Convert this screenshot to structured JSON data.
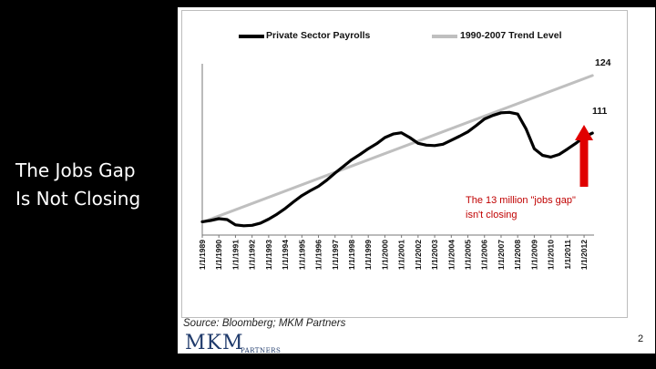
{
  "slide": {
    "title_lines": [
      "The Jobs Gap",
      "Is Not Closing"
    ],
    "page_number": "2"
  },
  "source_text": "Source: Bloomberg; MKM Partners",
  "logo": {
    "main": "MKM",
    "sub": "PARTNERS"
  },
  "annotation": {
    "lines": [
      "The 13 million \"jobs gap\"",
      "isn't closing"
    ]
  },
  "colors": {
    "payrolls": "#000000",
    "trend": "#bfbfbf",
    "annotation": "#c00000",
    "arrow": "#e00000"
  },
  "chart_data": {
    "type": "line",
    "title": "",
    "xlabel": "",
    "ylabel": "",
    "categories": [
      "1/1/1989",
      "1/1/1990",
      "1/1/1991",
      "1/1/1992",
      "1/1/1993",
      "1/1/1994",
      "1/1/1995",
      "1/1/1996",
      "1/1/1997",
      "1/1/1998",
      "1/1/1999",
      "1/1/2000",
      "1/1/2001",
      "1/1/2002",
      "1/1/2003",
      "1/1/2004",
      "1/1/2005",
      "1/1/2006",
      "1/1/2007",
      "1/1/2008",
      "1/1/2009",
      "1/1/2010",
      "1/1/2011",
      "1/1/2012"
    ],
    "ylim": [
      88,
      132
    ],
    "legend_position": "top",
    "series": [
      {
        "name": "Private Sector Payrolls",
        "color": "#000000",
        "x": [
          1989,
          1989.5,
          1990,
          1990.5,
          1991,
          1991.5,
          1992,
          1992.5,
          1993,
          1993.5,
          1994,
          1994.5,
          1995,
          1995.5,
          1996,
          1996.5,
          1997,
          1997.5,
          1998,
          1998.5,
          1999,
          1999.5,
          2000,
          2000.5,
          2001,
          2001.5,
          2002,
          2002.5,
          2003,
          2003.5,
          2004,
          2004.5,
          2005,
          2005.5,
          2006,
          2006.5,
          2007,
          2007.5,
          2008,
          2008.5,
          2009,
          2009.5,
          2010,
          2010.5,
          2011,
          2011.5,
          2012,
          2012.5
        ],
        "values": [
          91.0,
          91.3,
          91.7,
          91.5,
          90.3,
          90.1,
          90.2,
          90.7,
          91.6,
          92.7,
          94.0,
          95.5,
          96.9,
          98.0,
          99.0,
          100.4,
          102.0,
          103.5,
          105.0,
          106.2,
          107.5,
          108.6,
          110.0,
          110.8,
          111.1,
          110.0,
          108.7,
          108.3,
          108.2,
          108.5,
          109.4,
          110.3,
          111.3,
          112.7,
          114.2,
          115.0,
          115.6,
          115.7,
          115.3,
          112.0,
          107.5,
          106.0,
          105.6,
          106.2,
          107.4,
          108.7,
          110.1,
          111.0
        ]
      },
      {
        "name": "1990-2007 Trend Level",
        "color": "#bfbfbf",
        "x": [
          1989,
          2012.5
        ],
        "values": [
          90.9,
          124.0
        ]
      }
    ],
    "end_labels": [
      "124",
      "111"
    ]
  }
}
